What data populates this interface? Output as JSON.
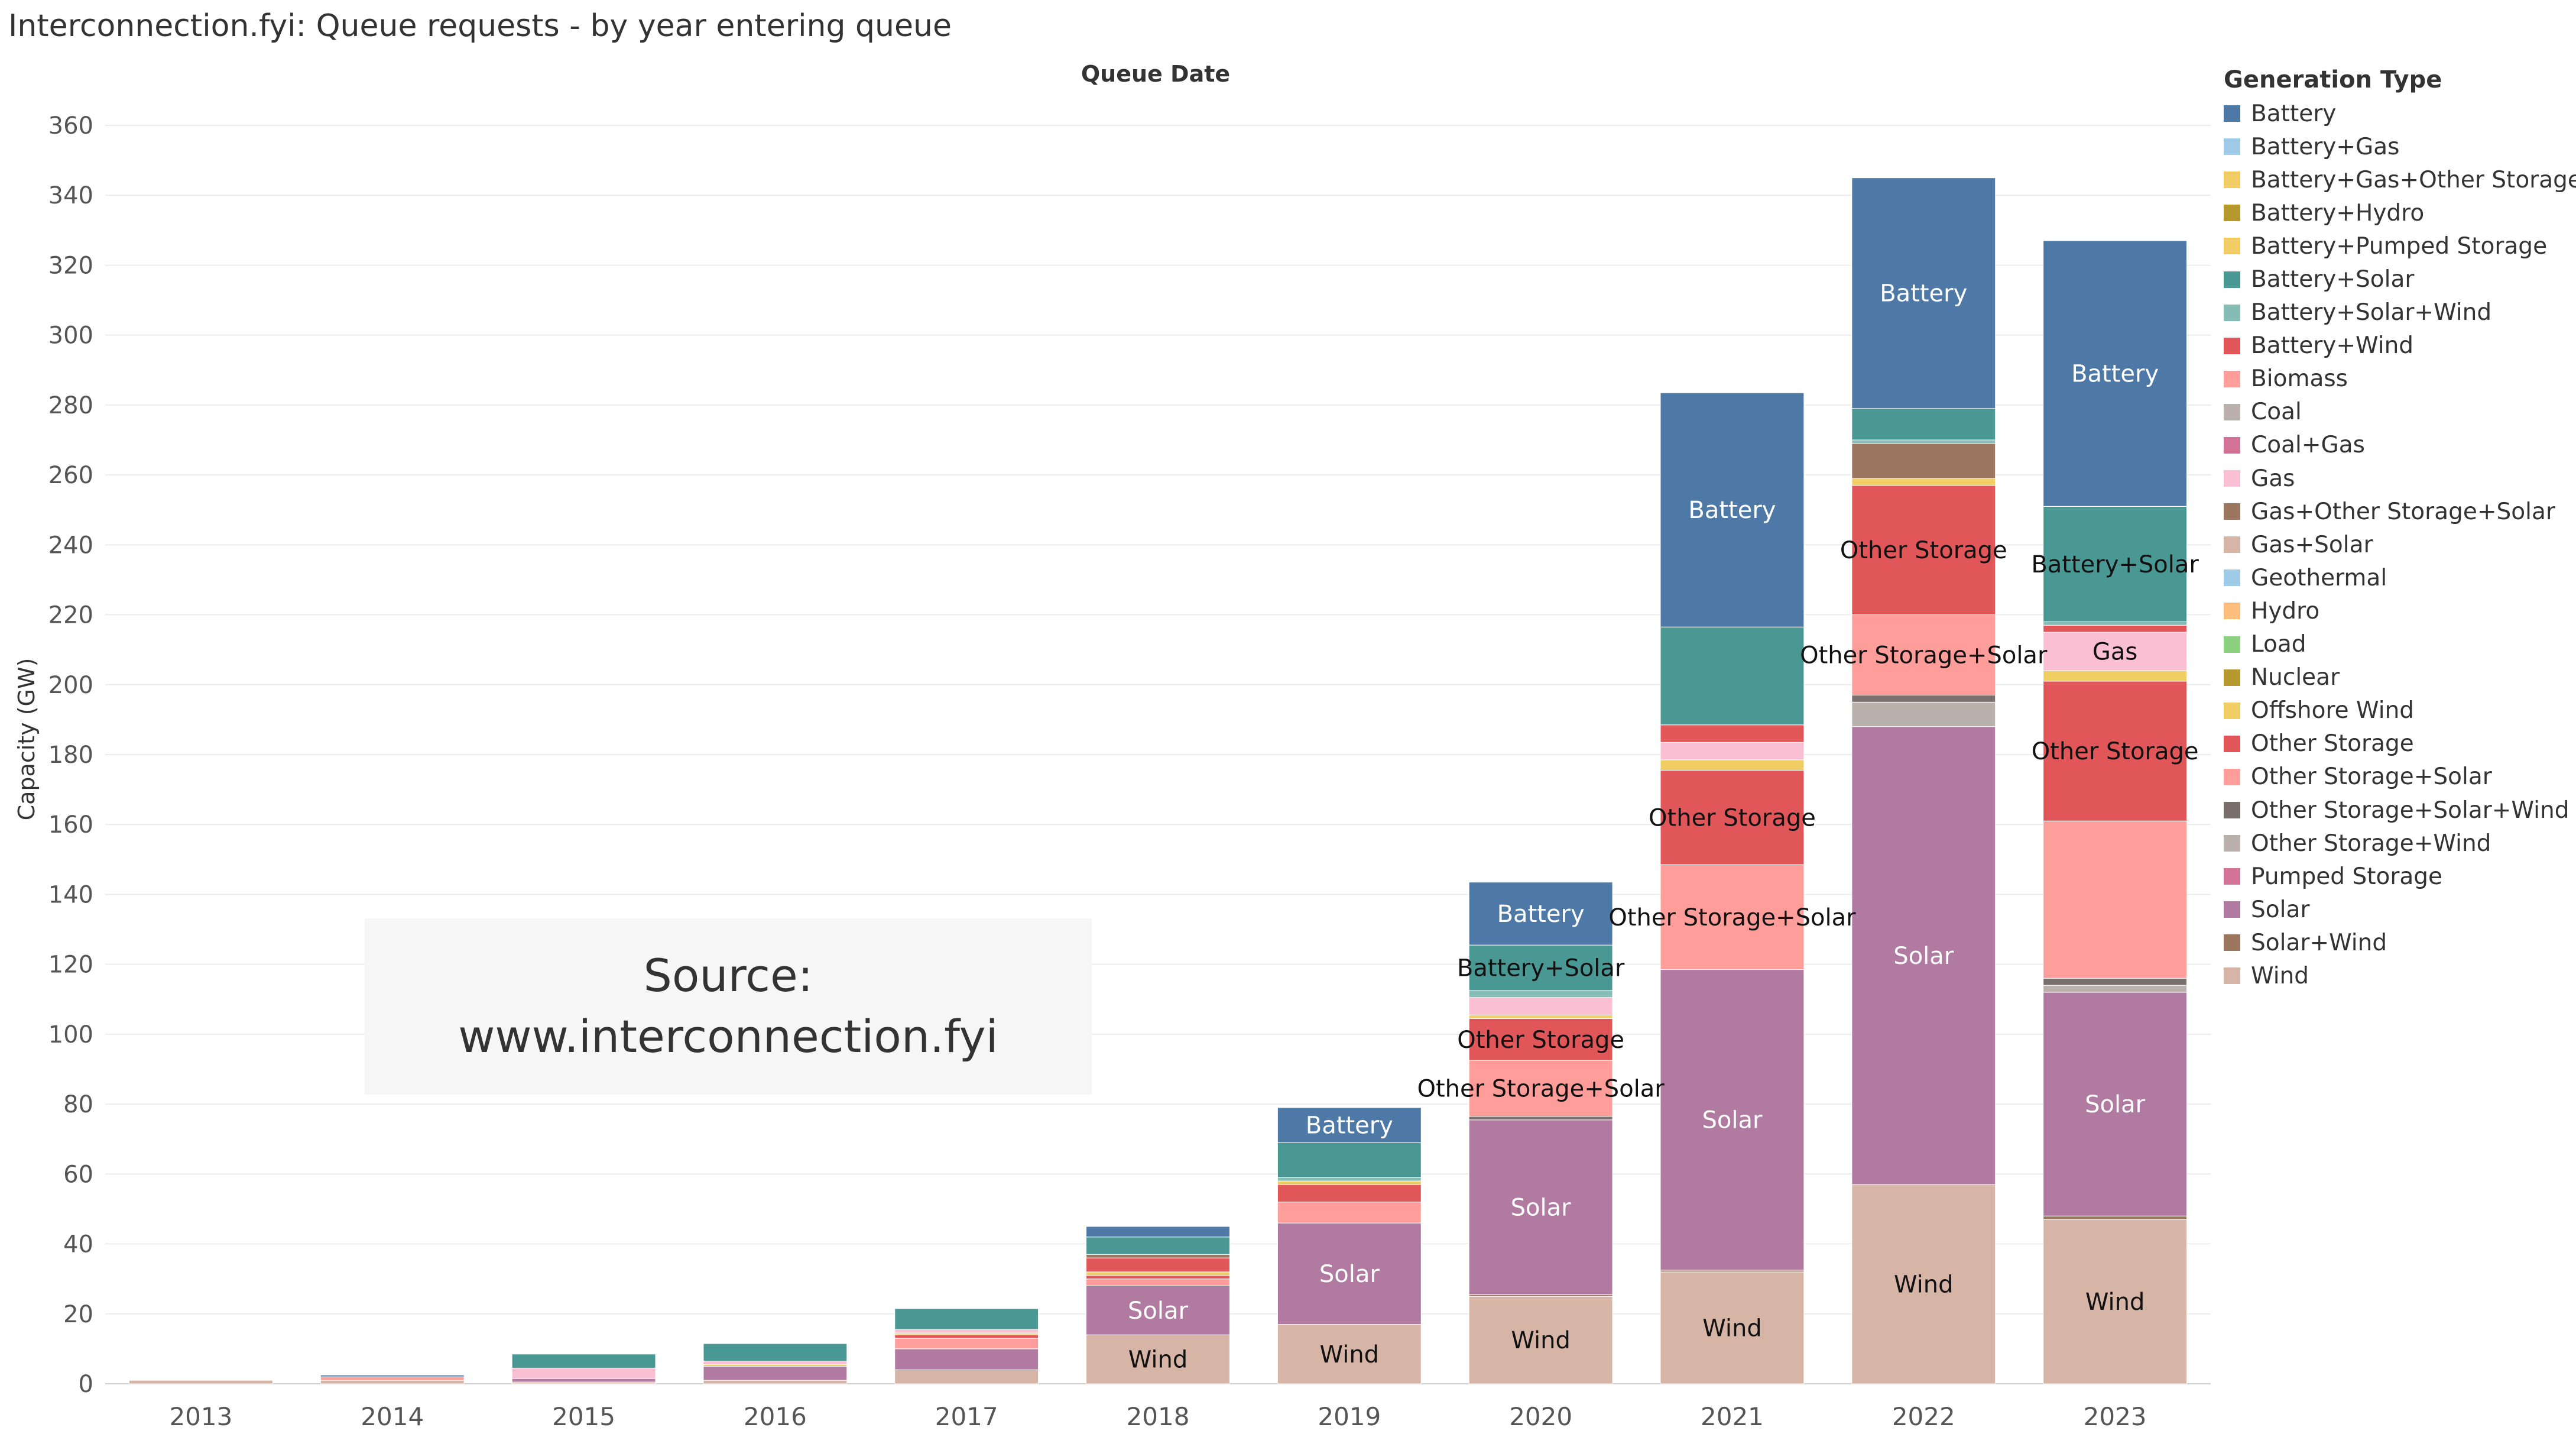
{
  "header": {
    "title": "Interconnection.fyi: Queue requests - by year entering queue"
  },
  "watermark": {
    "line1": "Source:",
    "line2": "www.interconnection.fyi"
  },
  "legend": {
    "title": "Generation Type",
    "items": [
      {
        "label": "Battery",
        "color": "#4e79a7"
      },
      {
        "label": "Battery+Gas",
        "color": "#a0cbe8"
      },
      {
        "label": "Battery+Gas+Other Storage",
        "color": "#f1ce63"
      },
      {
        "label": "Battery+Hydro",
        "color": "#b6992d"
      },
      {
        "label": "Battery+Pumped Storage",
        "color": "#f1ce63"
      },
      {
        "label": "Battery+Solar",
        "color": "#499894"
      },
      {
        "label": "Battery+Solar+Wind",
        "color": "#86bcb6"
      },
      {
        "label": "Battery+Wind",
        "color": "#e15759"
      },
      {
        "label": "Biomass",
        "color": "#ff9d9a"
      },
      {
        "label": "Coal",
        "color": "#bab0ac"
      },
      {
        "label": "Coal+Gas",
        "color": "#d37295"
      },
      {
        "label": "Gas",
        "color": "#fabfd2"
      },
      {
        "label": "Gas+Other Storage+Solar",
        "color": "#9d7660"
      },
      {
        "label": "Gas+Solar",
        "color": "#d7b5a6"
      },
      {
        "label": "Geothermal",
        "color": "#a0cbe8"
      },
      {
        "label": "Hydro",
        "color": "#ffbe7d"
      },
      {
        "label": "Load",
        "color": "#8cd17d"
      },
      {
        "label": "Nuclear",
        "color": "#b6992d"
      },
      {
        "label": "Offshore Wind",
        "color": "#f1ce63"
      },
      {
        "label": "Other Storage",
        "color": "#e15759"
      },
      {
        "label": "Other Storage+Solar",
        "color": "#ff9d9a"
      },
      {
        "label": "Other Storage+Solar+Wind",
        "color": "#79706e"
      },
      {
        "label": "Other Storage+Wind",
        "color": "#bab0ac"
      },
      {
        "label": "Pumped Storage",
        "color": "#d37295"
      },
      {
        "label": "Solar",
        "color": "#b07aa1"
      },
      {
        "label": "Solar+Wind",
        "color": "#9d7660"
      },
      {
        "label": "Wind",
        "color": "#d7b5a6"
      }
    ]
  },
  "chart_data": {
    "type": "bar",
    "stacked": true,
    "title": "Queue Date",
    "xlabel": "",
    "ylabel": "Capacity (GW)",
    "ylim": [
      0,
      360
    ],
    "yticks": [
      0,
      20,
      40,
      60,
      80,
      100,
      120,
      140,
      160,
      180,
      200,
      220,
      240,
      260,
      280,
      300,
      320,
      340,
      360
    ],
    "grid": true,
    "legend_position": "right",
    "categories": [
      "2013",
      "2014",
      "2015",
      "2016",
      "2017",
      "2018",
      "2019",
      "2020",
      "2021",
      "2022",
      "2023"
    ],
    "series": [
      {
        "name": "Wind",
        "color": "#d7b5a6",
        "values": [
          1,
          1,
          0.5,
          1,
          4,
          14,
          17,
          25,
          32,
          57,
          47
        ]
      },
      {
        "name": "Solar+Wind",
        "color": "#9d7660",
        "values": [
          0,
          0,
          0,
          0,
          0,
          0,
          0,
          0.5,
          0.5,
          0,
          1
        ]
      },
      {
        "name": "Solar",
        "color": "#b07aa1",
        "values": [
          0,
          0,
          1,
          4,
          6,
          14,
          29,
          50,
          86,
          131,
          64
        ]
      },
      {
        "name": "Other Storage+Wind",
        "color": "#bab0ac",
        "values": [
          0,
          0,
          0,
          0,
          0,
          0,
          0,
          0,
          0,
          7,
          2
        ]
      },
      {
        "name": "Other Storage+Solar+Wind",
        "color": "#79706e",
        "values": [
          0,
          0,
          0,
          0,
          0,
          0,
          0,
          1,
          0,
          2,
          2
        ]
      },
      {
        "name": "Other Storage+Solar",
        "color": "#ff9d9a",
        "values": [
          0,
          1,
          0,
          0,
          3,
          2,
          6,
          16,
          30,
          23,
          45
        ]
      },
      {
        "name": "Other Storage",
        "color": "#e15759",
        "values": [
          0,
          0,
          0,
          0,
          1,
          1,
          5,
          12,
          27,
          37,
          40
        ]
      },
      {
        "name": "Offshore Wind",
        "color": "#f1ce63",
        "values": [
          0,
          0,
          0,
          0.5,
          0.5,
          1,
          1,
          1,
          3,
          2,
          3
        ]
      },
      {
        "name": "Gas",
        "color": "#fabfd2",
        "values": [
          0,
          0,
          3,
          1,
          1,
          0,
          0,
          5,
          5,
          0,
          11
        ]
      },
      {
        "name": "Battery+Wind",
        "color": "#e15759",
        "values": [
          0,
          0,
          0,
          0,
          0,
          4,
          0,
          0,
          5,
          0,
          2
        ]
      },
      {
        "name": "Gas+Other Storage+Solar",
        "color": "#9d7660",
        "values": [
          0,
          0,
          0,
          0,
          0,
          1,
          0,
          0,
          0,
          10,
          0
        ]
      },
      {
        "name": "Battery+Solar+Wind",
        "color": "#86bcb6",
        "values": [
          0,
          0,
          0,
          0,
          0,
          0,
          1,
          2,
          0,
          1,
          1
        ]
      },
      {
        "name": "Battery+Solar",
        "color": "#499894",
        "values": [
          0,
          0,
          4,
          5,
          6,
          5,
          10,
          13,
          28,
          9,
          33
        ]
      },
      {
        "name": "Battery",
        "color": "#4e79a7",
        "values": [
          0,
          0.5,
          0,
          0,
          0,
          3,
          10,
          18,
          67,
          66,
          76
        ]
      }
    ],
    "segment_labels": [
      {
        "category": "2018",
        "series": "Wind",
        "text": "Wind",
        "style": "dark"
      },
      {
        "category": "2018",
        "series": "Solar",
        "text": "Solar",
        "style": "light"
      },
      {
        "category": "2019",
        "series": "Wind",
        "text": "Wind",
        "style": "dark"
      },
      {
        "category": "2019",
        "series": "Solar",
        "text": "Solar",
        "style": "light"
      },
      {
        "category": "2019",
        "series": "Battery",
        "text": "Battery",
        "style": "light"
      },
      {
        "category": "2020",
        "series": "Wind",
        "text": "Wind",
        "style": "dark"
      },
      {
        "category": "2020",
        "series": "Solar",
        "text": "Solar",
        "style": "light"
      },
      {
        "category": "2020",
        "series": "Other Storage+Solar",
        "text": "Other Storage+Solar",
        "style": "dark"
      },
      {
        "category": "2020",
        "series": "Other Storage",
        "text": "Other Storage",
        "style": "dark"
      },
      {
        "category": "2020",
        "series": "Battery+Solar",
        "text": "Battery+Solar",
        "style": "dark"
      },
      {
        "category": "2020",
        "series": "Battery",
        "text": "Battery",
        "style": "light"
      },
      {
        "category": "2021",
        "series": "Wind",
        "text": "Wind",
        "style": "dark"
      },
      {
        "category": "2021",
        "series": "Solar",
        "text": "Solar",
        "style": "light"
      },
      {
        "category": "2021",
        "series": "Other Storage+Solar",
        "text": "Other Storage+Solar",
        "style": "dark"
      },
      {
        "category": "2021",
        "series": "Other Storage",
        "text": "Other Storage",
        "style": "dark"
      },
      {
        "category": "2021",
        "series": "Battery",
        "text": "Battery",
        "style": "light"
      },
      {
        "category": "2022",
        "series": "Wind",
        "text": "Wind",
        "style": "dark"
      },
      {
        "category": "2022",
        "series": "Solar",
        "text": "Solar",
        "style": "light"
      },
      {
        "category": "2022",
        "series": "Other Storage+Solar",
        "text": "Other Storage+Solar",
        "style": "dark"
      },
      {
        "category": "2022",
        "series": "Other Storage",
        "text": "Other Storage",
        "style": "dark"
      },
      {
        "category": "2022",
        "series": "Battery",
        "text": "Battery",
        "style": "light"
      },
      {
        "category": "2023",
        "series": "Wind",
        "text": "Wind",
        "style": "dark"
      },
      {
        "category": "2023",
        "series": "Solar",
        "text": "Solar",
        "style": "light"
      },
      {
        "category": "2023",
        "series": "Other Storage",
        "text": "Other Storage",
        "style": "dark"
      },
      {
        "category": "2023",
        "series": "Gas",
        "text": "Gas",
        "style": "dark"
      },
      {
        "category": "2023",
        "series": "Battery+Solar",
        "text": "Battery+Solar",
        "style": "dark"
      },
      {
        "category": "2023",
        "series": "Battery",
        "text": "Battery",
        "style": "light"
      }
    ]
  }
}
